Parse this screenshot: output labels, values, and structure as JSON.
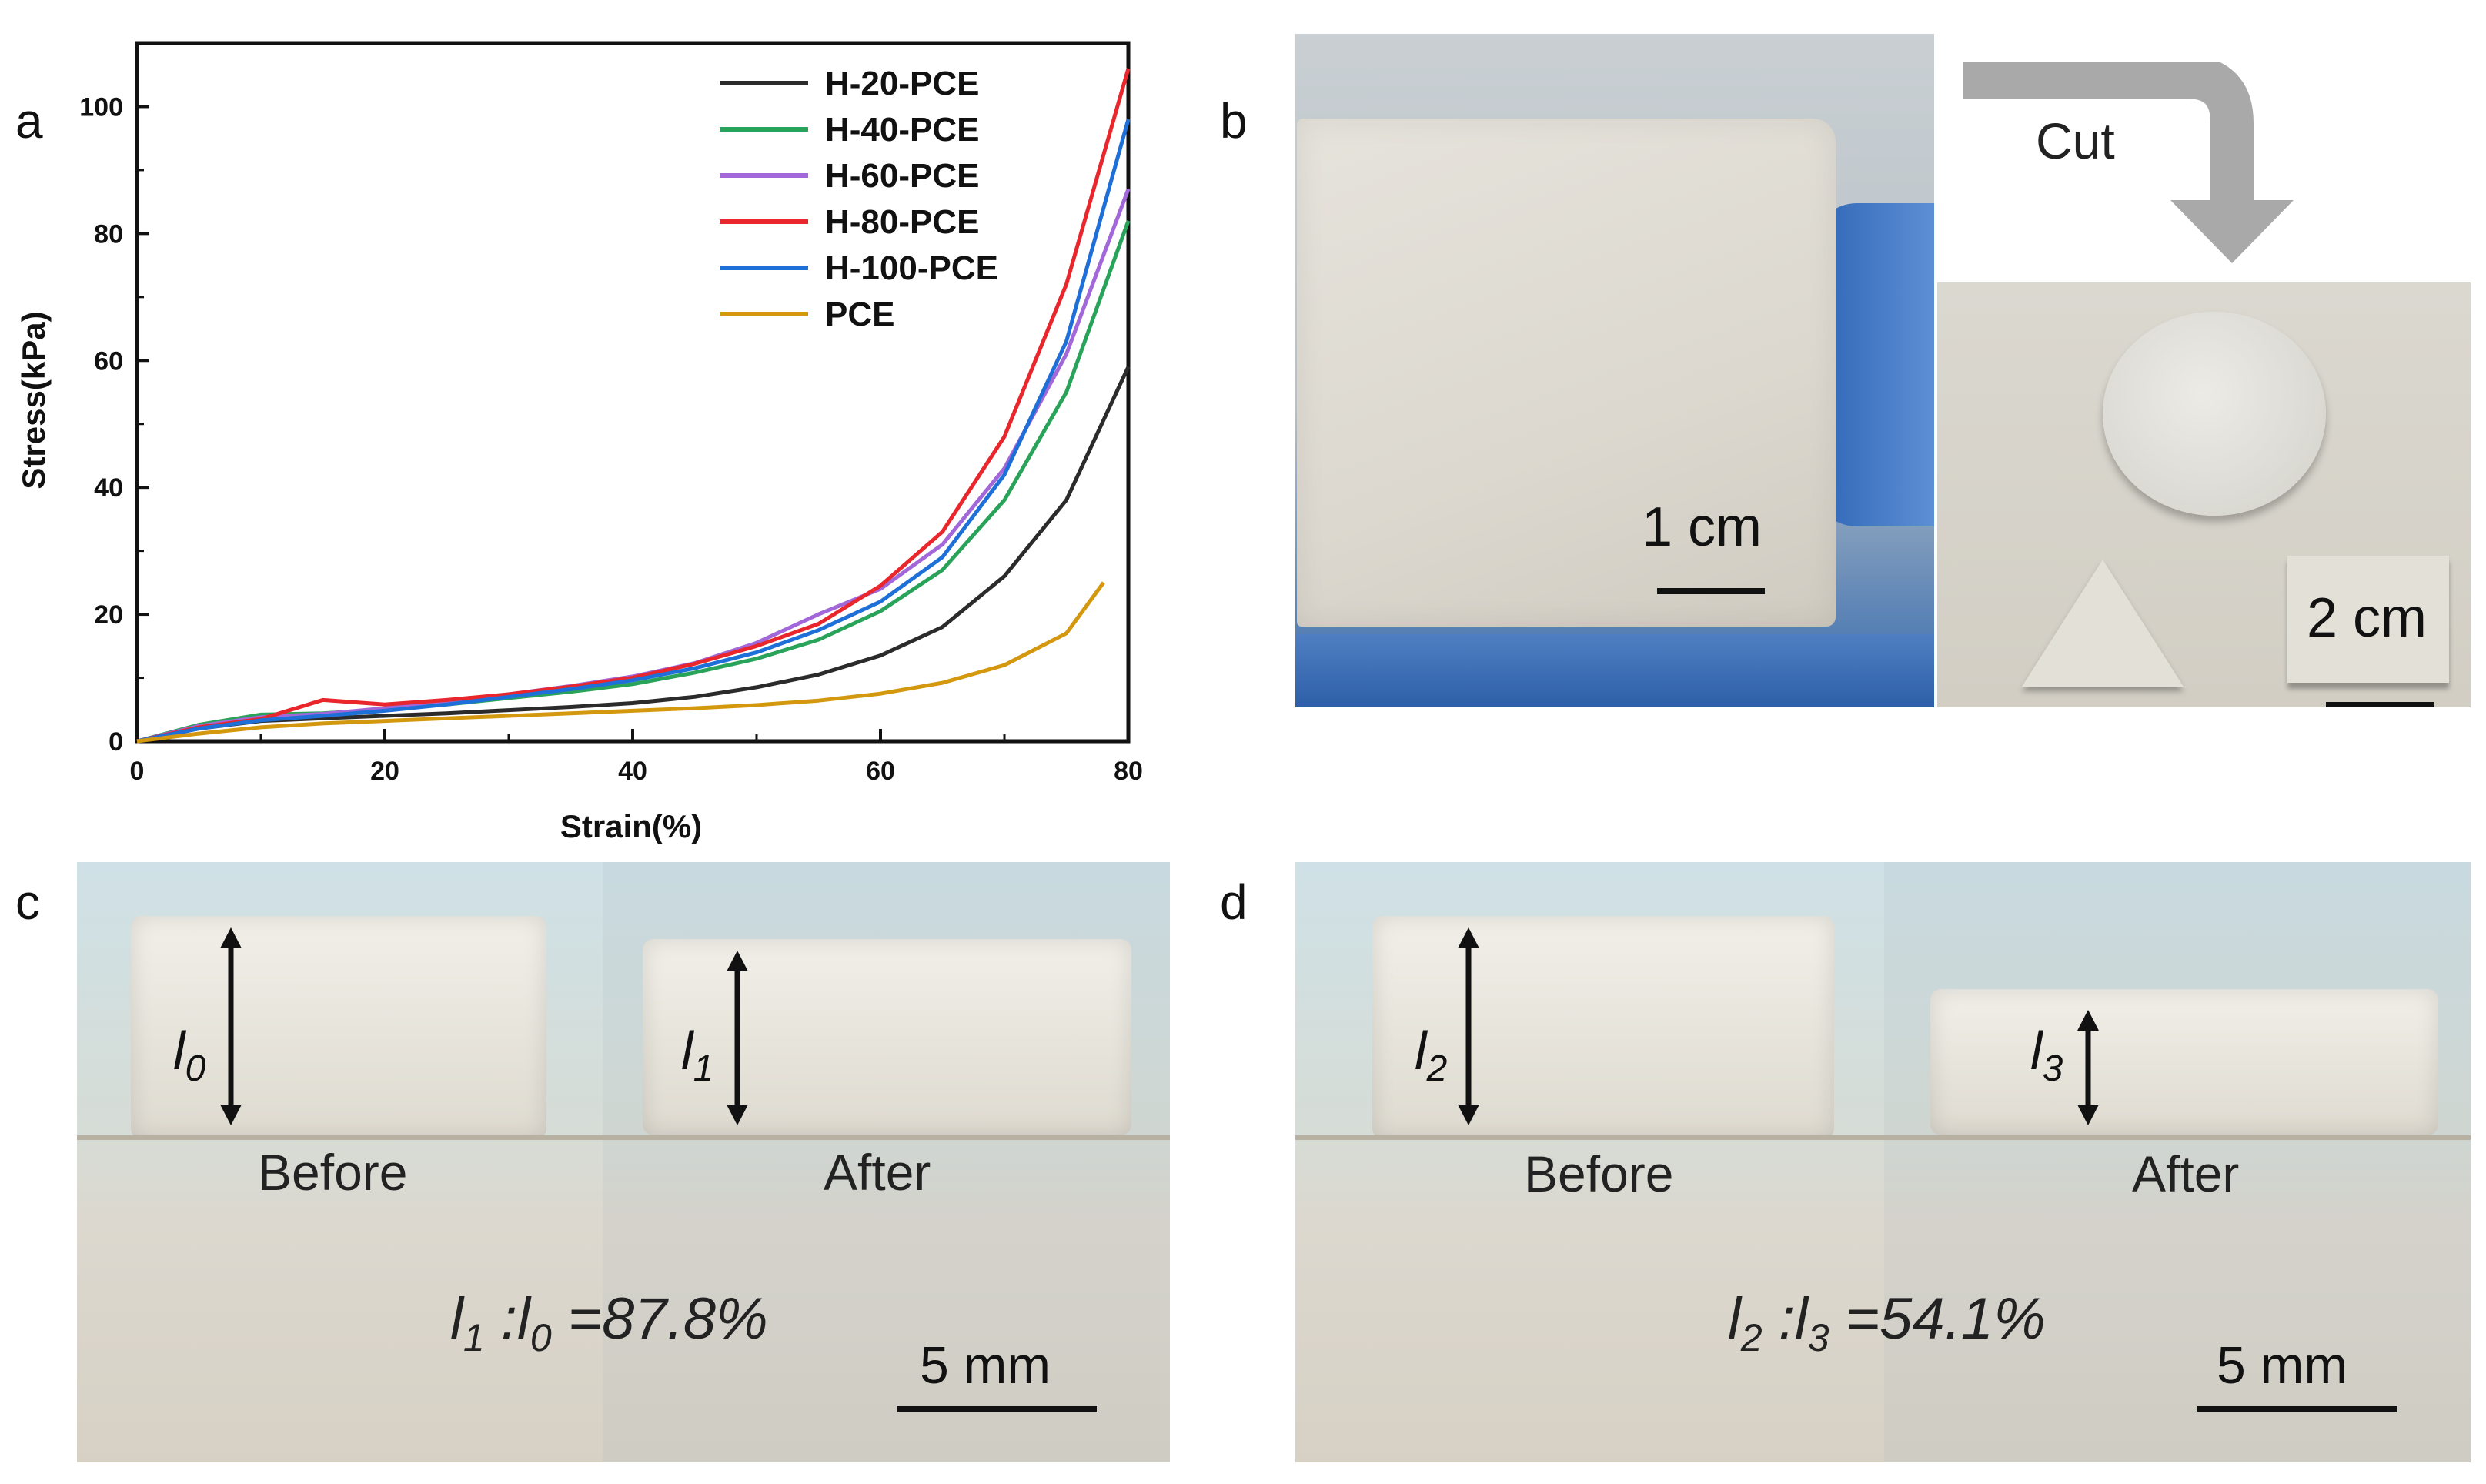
{
  "panels": {
    "a": "a",
    "b": "b",
    "c": "c",
    "d": "d"
  },
  "chart_data": {
    "type": "line",
    "xlabel": "Strain(%)",
    "ylabel": "Stress(kPa)",
    "xlim": [
      0,
      80
    ],
    "ylim": [
      0,
      110
    ],
    "xticks": [
      0,
      20,
      40,
      60,
      80
    ],
    "yticks": [
      0,
      20,
      40,
      60,
      80,
      100
    ],
    "grid": false,
    "legend_position": "top-right",
    "x": [
      0,
      5,
      10,
      15,
      20,
      25,
      30,
      35,
      40,
      45,
      50,
      55,
      60,
      65,
      70,
      75,
      80
    ],
    "series": [
      {
        "name": "H-20-PCE",
        "color": "#2b2b2b",
        "end_x": 80,
        "values": [
          0,
          2.0,
          3.2,
          3.6,
          4.0,
          4.4,
          4.9,
          5.4,
          6.0,
          7.0,
          8.5,
          10.5,
          13.5,
          18.0,
          26.0,
          38.0,
          59.0
        ]
      },
      {
        "name": "H-40-PCE",
        "color": "#2aa35a",
        "end_x": 80,
        "values": [
          0,
          2.6,
          4.2,
          4.4,
          5.0,
          5.8,
          6.8,
          7.8,
          9.0,
          10.8,
          13.0,
          16.0,
          20.5,
          27.0,
          38.0,
          55.0,
          82.0
        ]
      },
      {
        "name": "H-60-PCE",
        "color": "#a267d8",
        "end_x": 80,
        "values": [
          0,
          2.4,
          3.8,
          4.3,
          5.2,
          6.2,
          7.4,
          8.7,
          10.2,
          12.3,
          15.5,
          20.0,
          24.0,
          31.0,
          43.0,
          61.0,
          87.0
        ]
      },
      {
        "name": "H-80-PCE",
        "color": "#e8262b",
        "end_x": 80,
        "values": [
          0,
          2.2,
          3.5,
          6.5,
          5.8,
          6.5,
          7.4,
          8.6,
          10.0,
          12.2,
          15.0,
          18.5,
          24.5,
          33.0,
          48.0,
          72.0,
          106.0
        ]
      },
      {
        "name": "H-100-PCE",
        "color": "#1f6fd8",
        "end_x": 80,
        "values": [
          0,
          2.0,
          3.3,
          4.0,
          4.8,
          5.8,
          7.0,
          8.2,
          9.6,
          11.5,
          14.0,
          17.5,
          22.0,
          29.0,
          42.0,
          63.0,
          98.0
        ]
      },
      {
        "name": "PCE",
        "color": "#d4980f",
        "end_x": 78,
        "values": [
          0,
          1.2,
          2.2,
          2.8,
          3.2,
          3.6,
          4.0,
          4.4,
          4.8,
          5.2,
          5.7,
          6.4,
          7.5,
          9.2,
          12.0,
          17.0,
          25.0
        ]
      }
    ]
  },
  "panel_b": {
    "arrow_label": "Cut",
    "scale_left": "1 cm",
    "scale_right": "2 cm"
  },
  "panel_c": {
    "before": "Before",
    "after": "After",
    "h0": "l",
    "h0_sub": "0",
    "h1": "l",
    "h1_sub": "1",
    "ratio_a": "l",
    "ratio_a_sub": "1",
    "ratio_b": "l",
    "ratio_b_sub": "0",
    "ratio_value": "=87.8%",
    "scale": "5 mm"
  },
  "panel_d": {
    "before": "Before",
    "after": "After",
    "h0": "l",
    "h0_sub": "2",
    "h1": "l",
    "h1_sub": "3",
    "ratio_a": "l",
    "ratio_a_sub": "2",
    "ratio_b": "l",
    "ratio_b_sub": "3",
    "ratio_value": "=54.1%",
    "scale": "5 mm"
  }
}
